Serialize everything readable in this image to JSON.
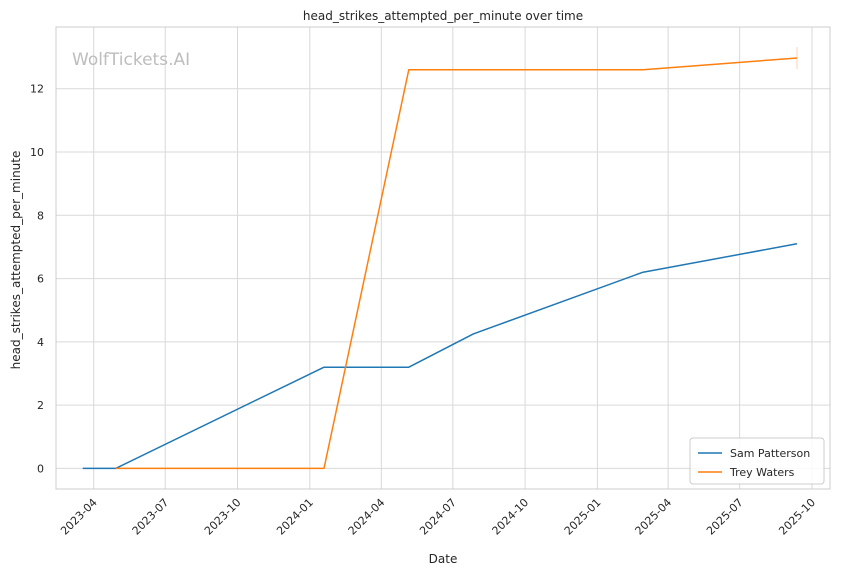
{
  "chart_data": {
    "type": "line",
    "title": "head_strikes_attempted_per_minute over time",
    "xlabel": "Date",
    "ylabel": "head_strikes_attempted_per_minute",
    "watermark": "WolfTickets.AI",
    "x_ticks": [
      "2023-04",
      "2023-07",
      "2023-10",
      "2024-01",
      "2024-04",
      "2024-07",
      "2024-10",
      "2025-01",
      "2025-04",
      "2025-07",
      "2025-10"
    ],
    "y_ticks": [
      0,
      2,
      4,
      6,
      8,
      10,
      12
    ],
    "xlim": [
      "2023-02-12",
      "2025-10-24"
    ],
    "ylim": [
      -0.65,
      13.95
    ],
    "grid": true,
    "legend_position": "lower-right",
    "series": [
      {
        "name": "Sam Patterson",
        "color": "#1f77b4",
        "points": [
          {
            "x": "2023-03-18",
            "y": 0.0
          },
          {
            "x": "2023-04-29",
            "y": 0.0
          },
          {
            "x": "2024-01-19",
            "y": 3.2
          },
          {
            "x": "2024-05-06",
            "y": 3.2
          },
          {
            "x": "2024-07-27",
            "y": 4.25
          },
          {
            "x": "2025-02-28",
            "y": 6.2
          },
          {
            "x": "2025-09-12",
            "y": 7.1
          }
        ]
      },
      {
        "name": "Trey Waters",
        "color": "#ff7f0e",
        "points": [
          {
            "x": "2023-04-29",
            "y": 0.0
          },
          {
            "x": "2024-01-19",
            "y": 0.0
          },
          {
            "x": "2024-05-06",
            "y": 12.6
          },
          {
            "x": "2025-02-28",
            "y": 12.6
          },
          {
            "x": "2025-09-12",
            "y": 12.97
          }
        ]
      }
    ]
  }
}
